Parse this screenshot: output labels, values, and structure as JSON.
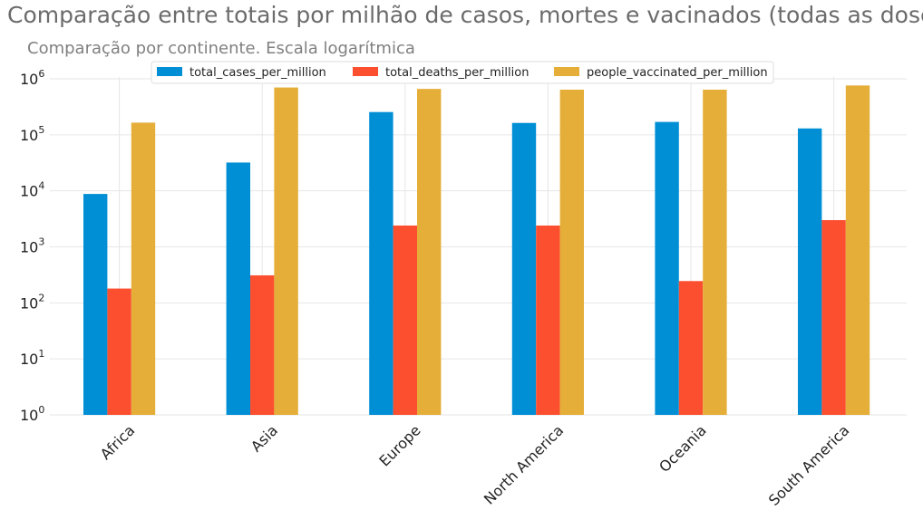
{
  "chart_data": {
    "type": "bar",
    "title": "Comparação entre totais por milhão de casos, mortes e vacinados (todas as doses)",
    "subtitle": "Comparação por continente. Escala logarítmica",
    "xlabel": "",
    "ylabel": "",
    "yscale": "log",
    "ylim": [
      1,
      1400000
    ],
    "grid": true,
    "legend_position": "top-center",
    "categories": [
      "Africa",
      "Asia",
      "Europe",
      "North America",
      "Oceania",
      "South America"
    ],
    "series": [
      {
        "name": "total_cases_per_million",
        "color": "#008fd5",
        "values": [
          8800,
          32000,
          255000,
          163000,
          170000,
          130000
        ]
      },
      {
        "name": "total_deaths_per_million",
        "color": "#fc4f30",
        "values": [
          180,
          310,
          2400,
          2400,
          245,
          3000
        ]
      },
      {
        "name": "people_vaccinated_per_million",
        "color": "#e5ae38",
        "values": [
          165000,
          700000,
          660000,
          640000,
          640000,
          760000
        ]
      }
    ],
    "yticks": [
      {
        "value": 1,
        "base": "10",
        "exp": "0"
      },
      {
        "value": 10,
        "base": "10",
        "exp": "1"
      },
      {
        "value": 100,
        "base": "10",
        "exp": "2"
      },
      {
        "value": 1000,
        "base": "10",
        "exp": "3"
      },
      {
        "value": 10000,
        "base": "10",
        "exp": "4"
      },
      {
        "value": 100000,
        "base": "10",
        "exp": "5"
      },
      {
        "value": 1000000,
        "base": "10",
        "exp": "6"
      }
    ]
  }
}
